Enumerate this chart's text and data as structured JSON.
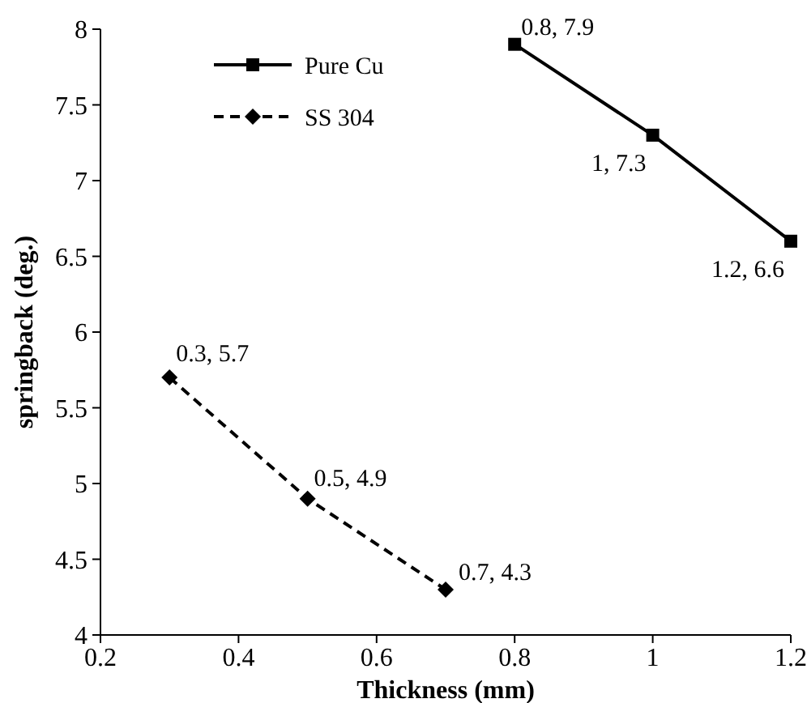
{
  "chart_data": {
    "type": "line",
    "xlabel": "Thickness (mm)",
    "ylabel": "springback (deg.)",
    "xlim": [
      0.2,
      1.2
    ],
    "xticks": [
      0.2,
      0.4,
      0.6,
      0.8,
      1,
      1.2
    ],
    "ylim": [
      4,
      8
    ],
    "yticks": [
      4,
      4.5,
      5,
      5.5,
      6,
      6.5,
      7,
      7.5,
      8
    ],
    "grid": false,
    "legend": "top left",
    "series": [
      {
        "name": "Pure Cu",
        "color": "#000000",
        "x": [
          0.8,
          1,
          1.2
        ],
        "values": [
          7.9,
          7.3,
          6.6
        ],
        "marker": "square",
        "line_style": "solid",
        "value_labels": [
          "0.8, 7.9",
          "1, 7.3",
          "1.2, 6.6"
        ]
      },
      {
        "name": "SS 304",
        "color": "#000000",
        "x": [
          0.3,
          0.5,
          0.7
        ],
        "values": [
          5.7,
          4.9,
          4.3
        ],
        "marker": "diamond",
        "line_style": "dashed",
        "value_labels": [
          "0.3, 5.7",
          "0.5, 4.9",
          "0.7, 4.3"
        ]
      }
    ]
  }
}
